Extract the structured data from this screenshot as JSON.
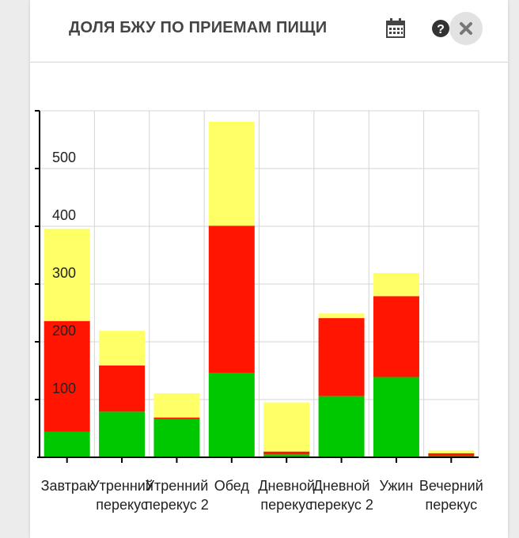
{
  "header": {
    "title": "ДОЛЯ БЖУ ПО ПРИЕМАМ ПИЩИ",
    "icons": [
      "calendar-icon",
      "help-icon",
      "close-icon"
    ]
  },
  "colors": {
    "protein": "#00c800",
    "fat": "#ff1500",
    "carbs": "#ffff66",
    "grid": "#d4d4d4",
    "axis": "#000000"
  },
  "chart_data": {
    "type": "bar",
    "stacked": true,
    "categories": [
      [
        "Завтрак"
      ],
      [
        "Утренний",
        "перекус"
      ],
      [
        "Утренний",
        "перекус 2"
      ],
      [
        "Обед"
      ],
      [
        "Дневной",
        "перекус"
      ],
      [
        "Дневной",
        "перекус 2"
      ],
      [
        "Ужин"
      ],
      [
        "Вечерний",
        "перекус"
      ]
    ],
    "series": [
      {
        "color": "#00c800",
        "values": [
          44,
          79,
          66,
          146,
          5,
          106,
          139,
          2
        ]
      },
      {
        "color": "#ff1500",
        "values": [
          192,
          80,
          3,
          255,
          5,
          135,
          140,
          5
        ]
      },
      {
        "color": "#ffff66",
        "values": [
          160,
          60,
          42,
          180,
          85,
          8,
          40,
          5
        ]
      }
    ],
    "yticks": [
      100,
      200,
      300,
      400,
      500
    ],
    "ylim": [
      0,
      600
    ],
    "grid": true
  }
}
